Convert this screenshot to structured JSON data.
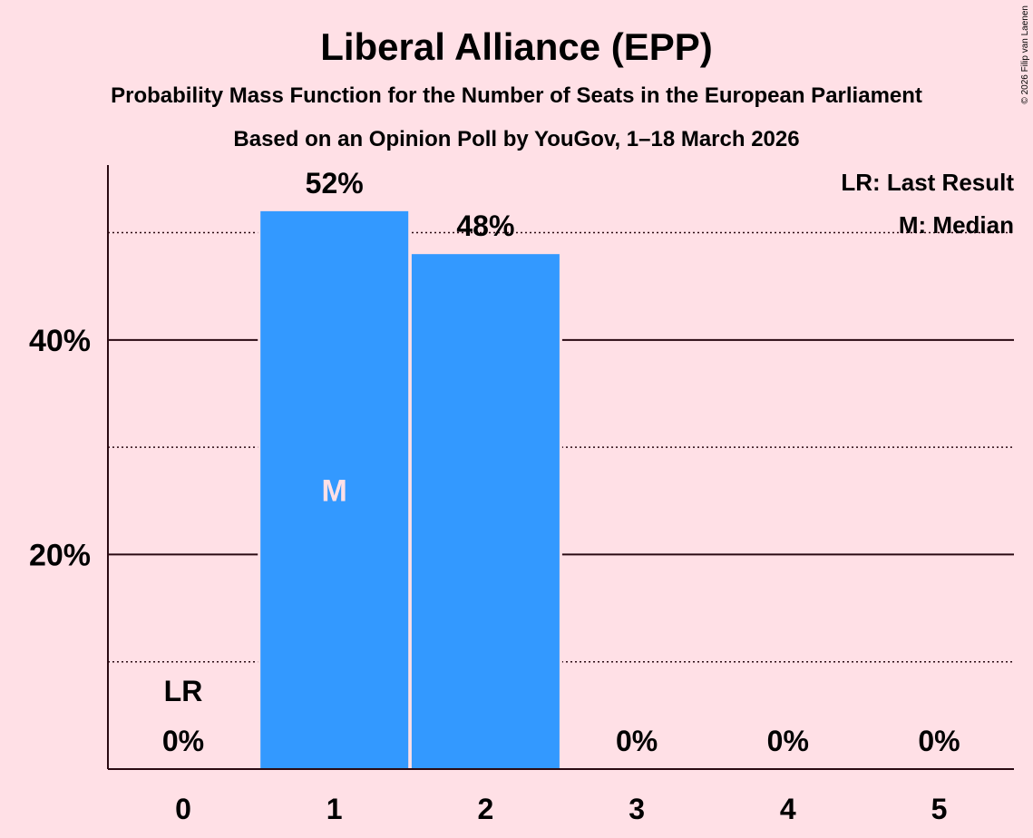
{
  "chart_data": {
    "type": "bar",
    "title": "Liberal Alliance (EPP)",
    "subtitle": "Probability Mass Function for the Number of Seats in the European Parliament",
    "subtitle2": "Based on an Opinion Poll by YouGov, 1–18 March 2026",
    "credit": "© 2026 Filip van Laenen",
    "categories": [
      "0",
      "1",
      "2",
      "3",
      "4",
      "5"
    ],
    "values": [
      0,
      52,
      48,
      0,
      0,
      0
    ],
    "value_labels": [
      "0%",
      "52%",
      "48%",
      "0%",
      "0%",
      "0%"
    ],
    "ylim": [
      0,
      56.3
    ],
    "yticks": [
      {
        "value": 20,
        "label": "20%",
        "style": "solid"
      },
      {
        "value": 40,
        "label": "40%",
        "style": "solid"
      }
    ],
    "ygrid_minor": [
      10,
      30,
      50
    ],
    "last_result_index": 0,
    "last_result_label": "LR",
    "median_index": 1,
    "median_label": "M",
    "legend": [
      "LR: Last Result",
      "M: Median"
    ],
    "bar_color": "#3399ff"
  }
}
